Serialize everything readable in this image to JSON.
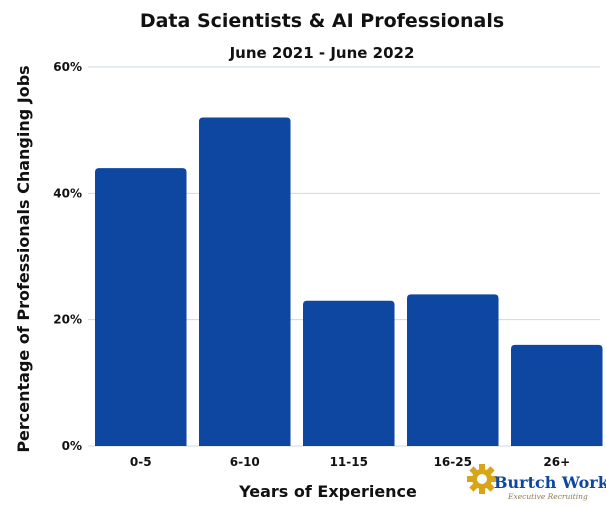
{
  "chart_data": {
    "type": "bar",
    "title": "Data Scientists & AI Professionals",
    "subtitle": "June 2021 - June 2022",
    "xlabel": "Years of Experience",
    "ylabel": "Percentage of Professionals Changing Jobs",
    "categories": [
      "0-5",
      "6-10",
      "11-15",
      "16-25",
      "26+"
    ],
    "values": [
      44,
      52,
      23,
      24,
      16
    ],
    "unit": "%",
    "ylim": [
      0,
      60
    ],
    "yticks": [
      0,
      20,
      40,
      60
    ],
    "ytick_labels": [
      "0%",
      "20%",
      "40%",
      "60%"
    ],
    "grid": true,
    "legend": "none",
    "colors": {
      "bar": "#0d47a1",
      "grid": "#cfd8e3",
      "text": "#111111"
    }
  },
  "logo": {
    "name": "Burtch Works",
    "tagline": "Executive Recruiting",
    "colors": {
      "main": "#0d47a1",
      "gear": "#d9a418",
      "tagline": "#8a7a55"
    }
  }
}
